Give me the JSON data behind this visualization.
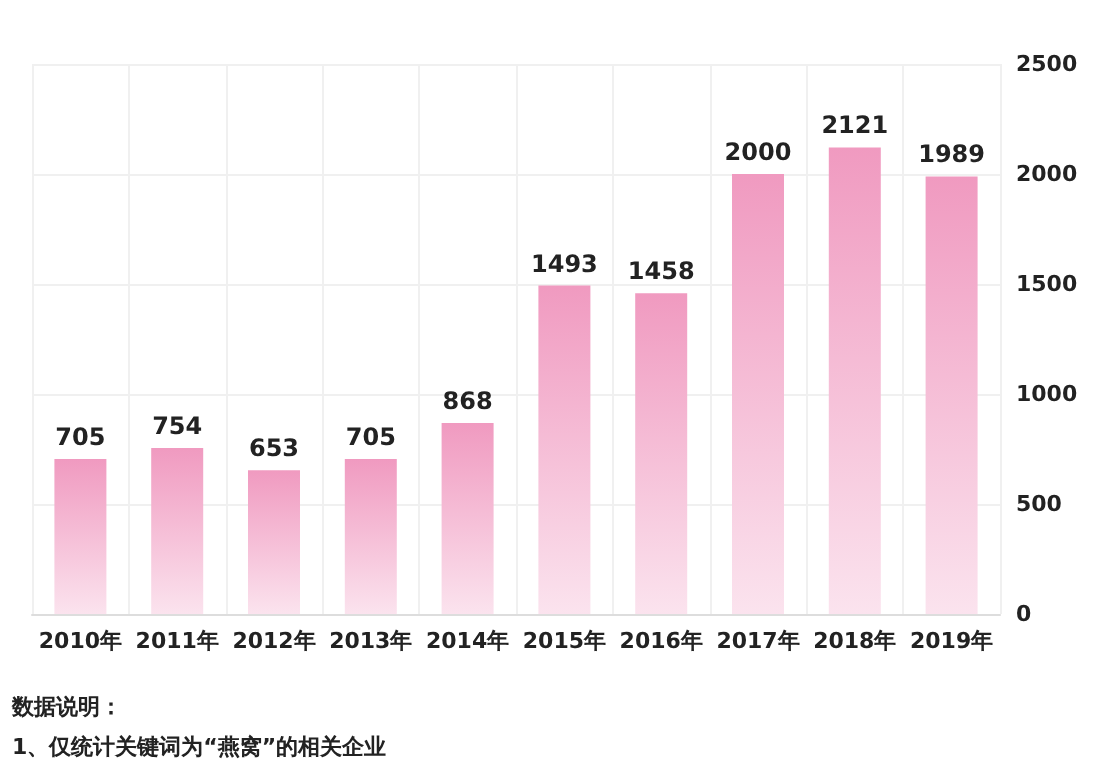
{
  "chart_data": {
    "type": "bar",
    "categories": [
      "2010年",
      "2011年",
      "2012年",
      "2013年",
      "2014年",
      "2015年",
      "2016年",
      "2017年",
      "2018年",
      "2019年"
    ],
    "values": [
      705,
      754,
      653,
      705,
      868,
      1493,
      1458,
      2000,
      2121,
      1989
    ],
    "color": "#f09ac0",
    "ylim": [
      0,
      2500
    ],
    "yticks": [
      0,
      500,
      1000,
      1500,
      2000,
      2500
    ],
    "grid": true,
    "data_labels": true,
    "annotations": [
      "数据说明：",
      "1、仅统计关键词为“燕窝”的相关企业"
    ]
  }
}
